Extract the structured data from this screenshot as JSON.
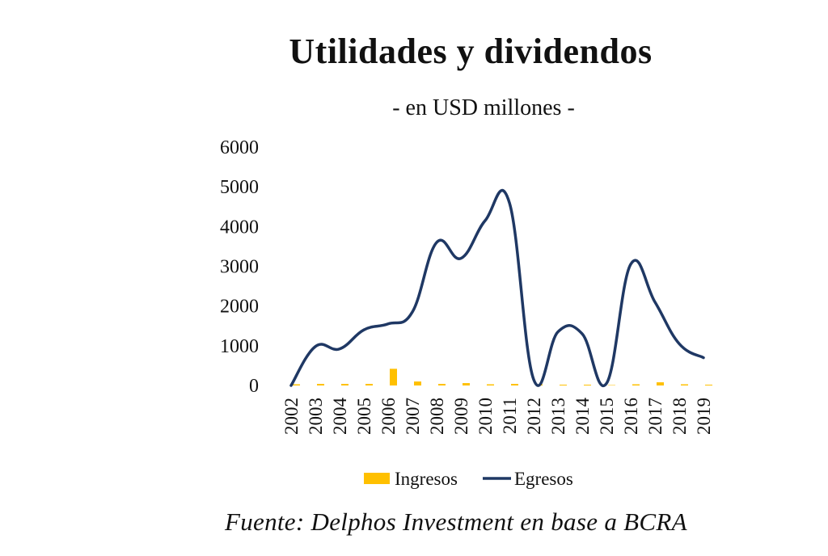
{
  "chart_data": {
    "type": "bar+line",
    "title": "Utilidades y dividendos",
    "subtitle": "- en USD millones -",
    "categories": [
      "2002",
      "2003",
      "2004",
      "2005",
      "2006",
      "2007",
      "2008",
      "2009",
      "2010",
      "2011",
      "2012",
      "2013",
      "2014",
      "2015",
      "2016",
      "2017",
      "2018",
      "2019"
    ],
    "ylim": [
      0,
      6000
    ],
    "yticks": [
      "6000",
      "5000",
      "4000",
      "3000",
      "2000",
      "1000",
      "0"
    ],
    "grid": false,
    "legend_position": "bottom",
    "series": [
      {
        "name": "Ingresos",
        "kind": "bar",
        "color": "#FFC000",
        "values": [
          30,
          40,
          40,
          40,
          420,
          100,
          40,
          60,
          30,
          40,
          30,
          20,
          20,
          10,
          30,
          80,
          30,
          20
        ]
      },
      {
        "name": "Egresos",
        "kind": "line",
        "color": "#1F3864",
        "values": [
          0,
          980,
          920,
          1400,
          1550,
          1850,
          3600,
          3200,
          4150,
          4600,
          150,
          1350,
          1300,
          50,
          3050,
          2100,
          1050,
          700
        ]
      }
    ]
  },
  "source": "Fuente: Delphos Investment en base a BCRA"
}
